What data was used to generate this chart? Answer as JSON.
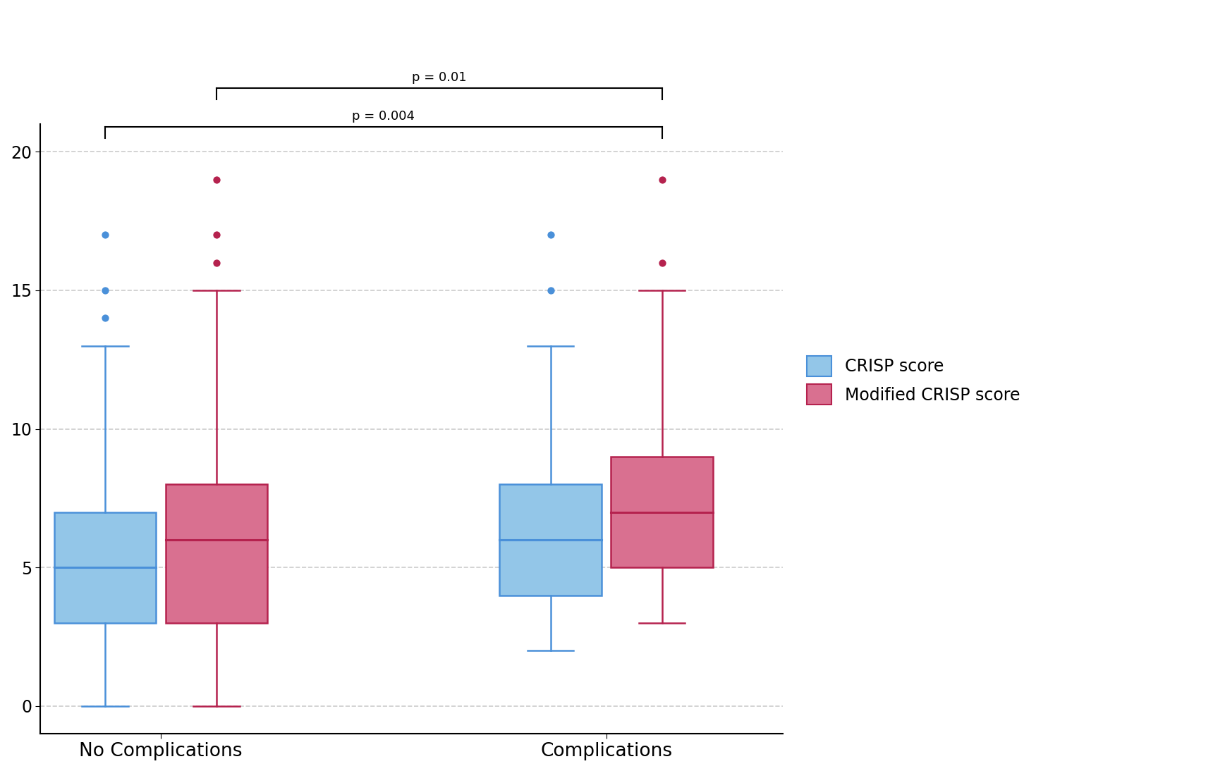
{
  "groups": [
    "No Complications",
    "Complications"
  ],
  "series": [
    "CRISP score",
    "Modified CRISP score"
  ],
  "edge_colors": [
    "#4a90d9",
    "#b5224e"
  ],
  "face_colors": [
    "#93c6e8",
    "#d97090"
  ],
  "no_comp_crisp": {
    "q1": 3,
    "median": 5,
    "q3": 7,
    "whisker_low": 0,
    "whisker_high": 13,
    "outliers": [
      15,
      17,
      14
    ]
  },
  "no_comp_modified": {
    "q1": 3,
    "median": 6,
    "q3": 8,
    "whisker_low": 0,
    "whisker_high": 15,
    "outliers": [
      17,
      16,
      19
    ]
  },
  "comp_crisp": {
    "q1": 4,
    "median": 6,
    "q3": 8,
    "whisker_low": 2,
    "whisker_high": 13,
    "outliers": [
      15,
      17
    ]
  },
  "comp_modified": {
    "q1": 5,
    "median": 7,
    "q3": 9,
    "whisker_low": 3,
    "whisker_high": 15,
    "outliers": [
      16,
      19
    ]
  },
  "ylim": [
    -1,
    21
  ],
  "yticks": [
    0,
    5,
    10,
    15,
    20
  ],
  "background_color": "#ffffff",
  "grid_color": "#cccccc",
  "legend_labels": [
    "CRISP score",
    "Modified CRISP score"
  ]
}
